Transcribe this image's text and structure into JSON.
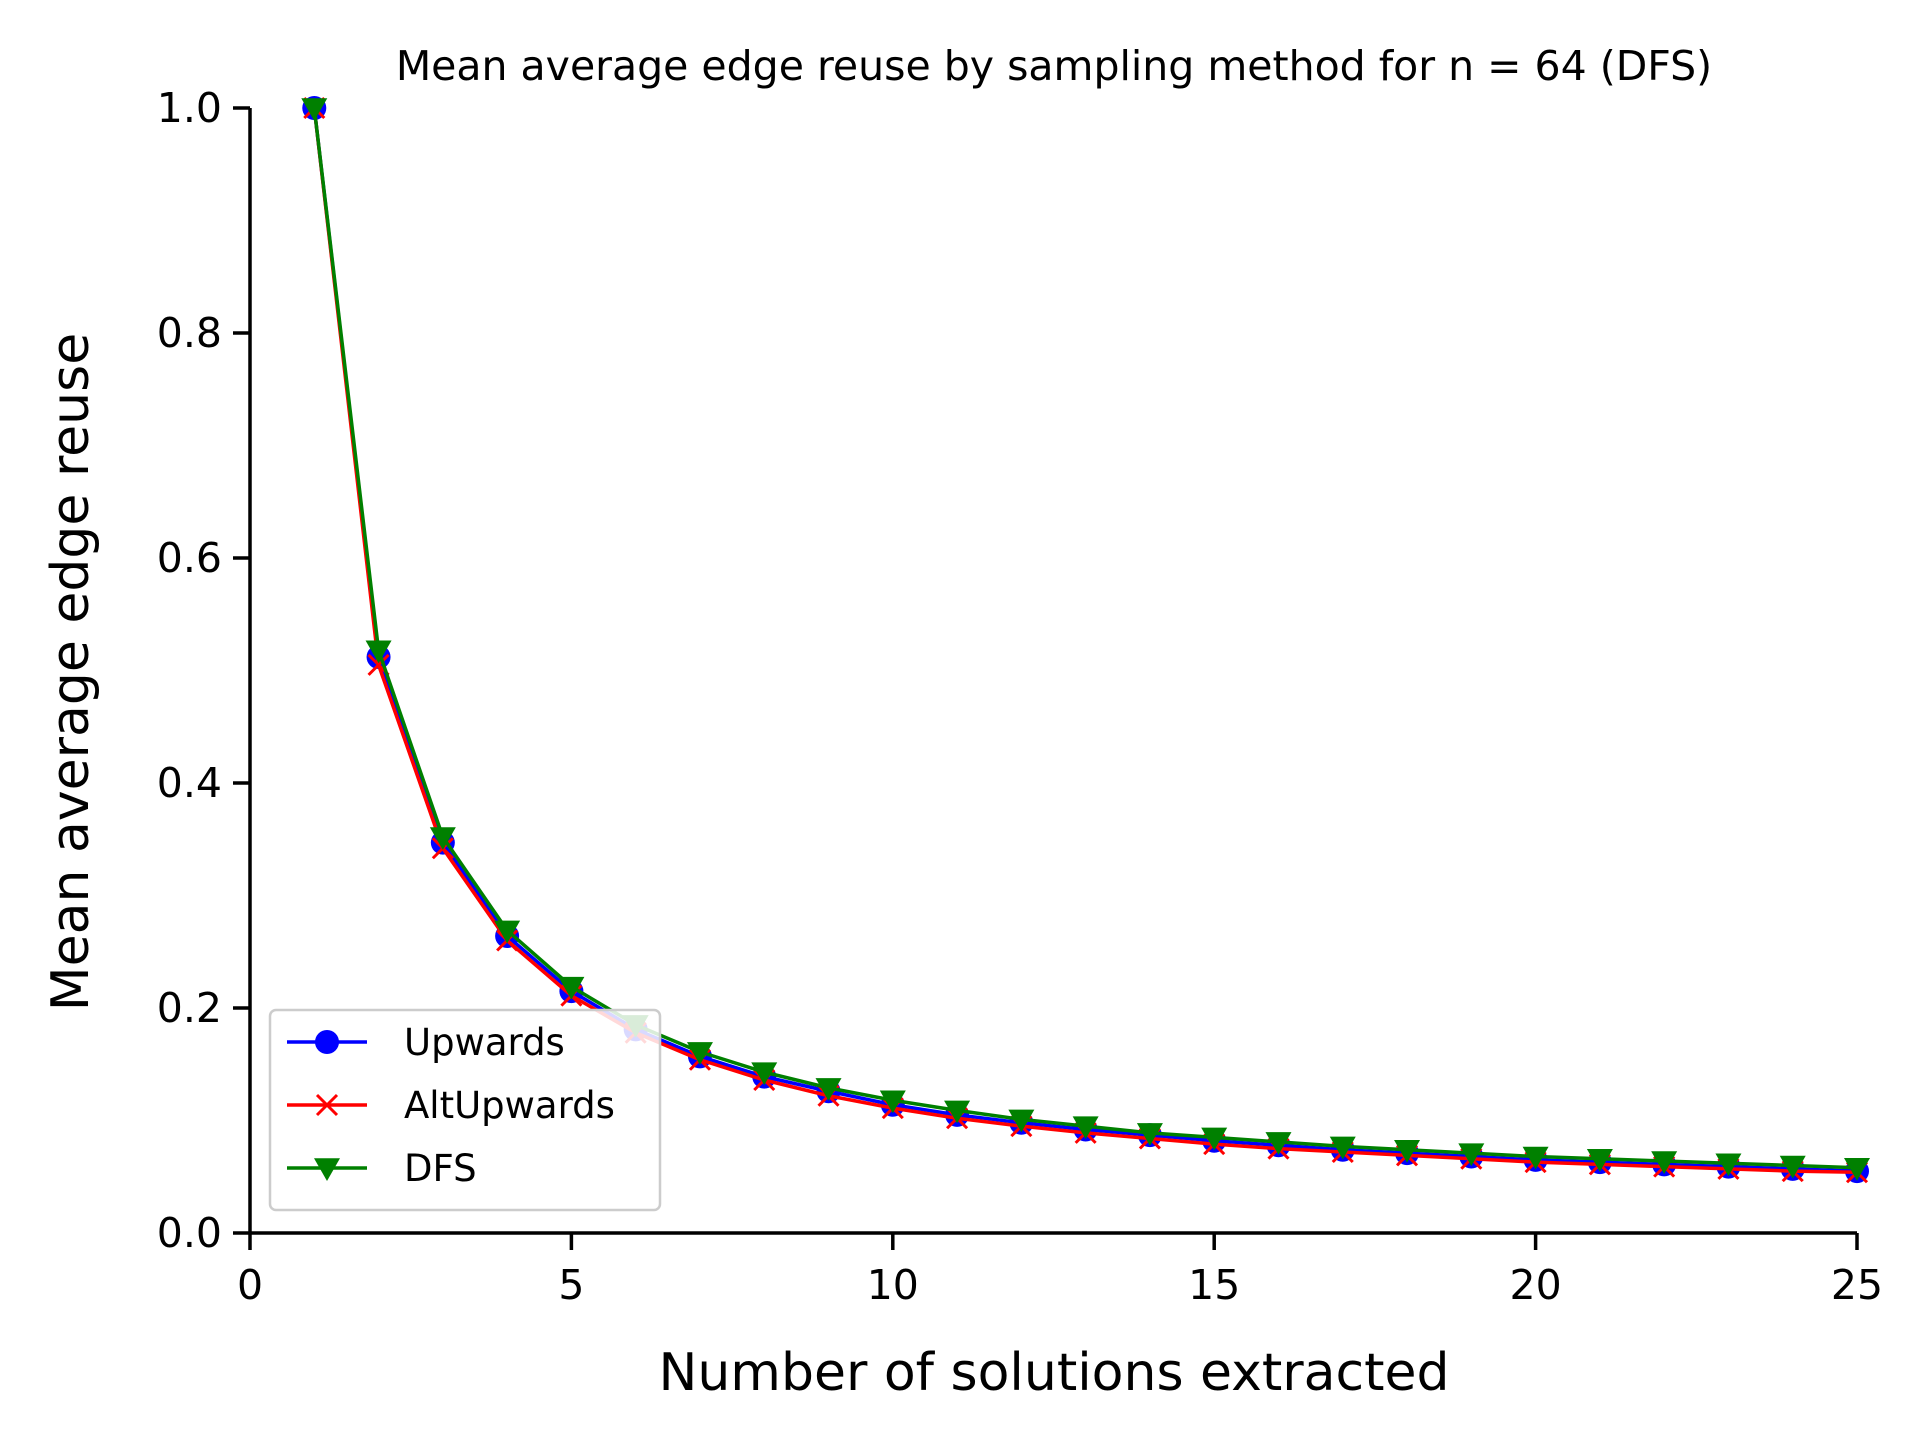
{
  "chart_data": {
    "type": "line",
    "title": "Mean average edge reuse by sampling method for n = 64 (DFS)",
    "xlabel": "Number of solutions extracted",
    "ylabel": "Mean average edge reuse",
    "xlim": [
      0,
      25
    ],
    "ylim": [
      0.0,
      1.0
    ],
    "xticks": [
      "0",
      "5",
      "10",
      "15",
      "20",
      "25"
    ],
    "yticks": [
      "0.0",
      "0.2",
      "0.4",
      "0.6",
      "0.8",
      "1.0"
    ],
    "grid": false,
    "legend_position": "lower-left",
    "x": [
      1,
      2,
      3,
      4,
      5,
      6,
      7,
      8,
      9,
      10,
      11,
      12,
      13,
      14,
      15,
      16,
      17,
      18,
      19,
      20,
      21,
      22,
      23,
      24,
      25
    ],
    "series": [
      {
        "name": "Upwards",
        "color": "#0000ff",
        "marker": "circle",
        "values": [
          1.0,
          0.512,
          0.347,
          0.264,
          0.215,
          0.181,
          0.157,
          0.139,
          0.126,
          0.114,
          0.105,
          0.098,
          0.092,
          0.087,
          0.082,
          0.078,
          0.074,
          0.071,
          0.068,
          0.065,
          0.063,
          0.061,
          0.059,
          0.057,
          0.055
        ]
      },
      {
        "name": "AltUpwards",
        "color": "#ff0000",
        "marker": "x",
        "values": [
          1.0,
          0.505,
          0.342,
          0.26,
          0.211,
          0.178,
          0.154,
          0.136,
          0.122,
          0.111,
          0.102,
          0.095,
          0.089,
          0.084,
          0.079,
          0.075,
          0.072,
          0.069,
          0.066,
          0.063,
          0.061,
          0.059,
          0.057,
          0.055,
          0.054
        ]
      },
      {
        "name": "DFS",
        "color": "#008000",
        "marker": "triangle-down",
        "values": [
          1.0,
          0.518,
          0.352,
          0.269,
          0.219,
          0.185,
          0.161,
          0.143,
          0.129,
          0.118,
          0.109,
          0.101,
          0.095,
          0.089,
          0.085,
          0.081,
          0.077,
          0.074,
          0.071,
          0.068,
          0.066,
          0.064,
          0.062,
          0.06,
          0.058
        ]
      }
    ]
  }
}
